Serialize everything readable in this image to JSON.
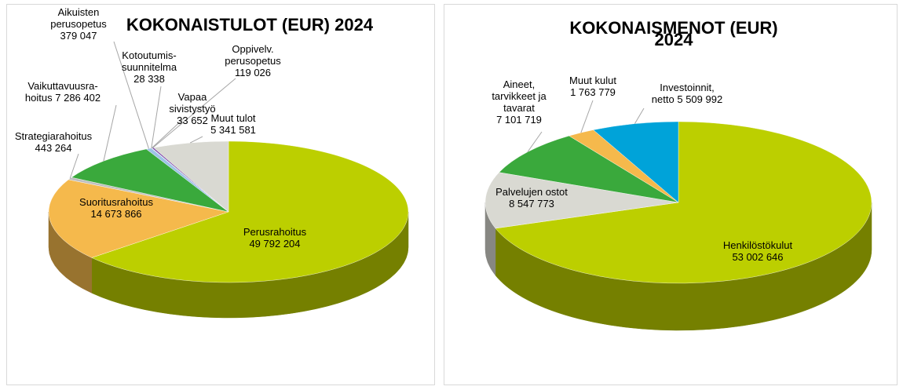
{
  "chart_data": [
    {
      "type": "pie",
      "title": "KOKONAISTULOT (EUR) 2024",
      "categories": [
        "Perusrahoitus",
        "Suoritusrahoitus",
        "Strategiarahoitus",
        "Vaikuttavuusra-\nhoitus",
        "Aikuisten\nperusopetus",
        "Kotoutumis-\nsuunnitelma",
        "Vapaa\nsivistystyö",
        "Oppivelv.\nperusopetus",
        "Muut tulot"
      ],
      "values": [
        49792204,
        14673866,
        443264,
        7286402,
        379047,
        28338,
        33652,
        119026,
        5341581
      ],
      "value_labels": [
        "49 792 204",
        "14 673 866",
        "443 264",
        "7 286 402",
        "379 047",
        "28 338",
        "33 652",
        "119 026",
        "5 341 581"
      ],
      "colors": [
        "#bccf00",
        "#f5b94c",
        "#bfbfbf",
        "#3aa93c",
        "#9dc3e6",
        "#a6a6a6",
        "#2e75b6",
        "#7030a0",
        "#d9d9d2"
      ]
    },
    {
      "type": "pie",
      "title": "KOKONAISMENOT (EUR) 2024",
      "categories": [
        "Henkilöstökulut",
        "Palvelujen ostot",
        "Aineet,\ntarvikkeet ja\ntavarat",
        "Muut kulut",
        "Investoinnit,\nnetto"
      ],
      "values": [
        53002646,
        8547773,
        7101719,
        1763779,
        5509992
      ],
      "value_labels": [
        "53 002 646",
        "8 547 773",
        "7 101 719",
        "1 763 779",
        "5 509 992"
      ],
      "colors": [
        "#bccf00",
        "#d9d9d2",
        "#3aa93c",
        "#f5b94c",
        "#00a3d9"
      ]
    }
  ]
}
